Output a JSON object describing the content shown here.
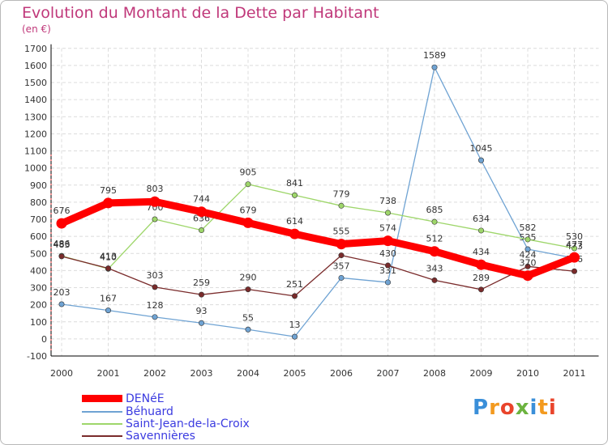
{
  "logo_text": "Proxiti",
  "chart_data": {
    "type": "line",
    "title": "Evolution du Montant de la Dette par Habitant",
    "xlabel": "",
    "ylabel": "(en €)",
    "categories": [
      "2000",
      "2001",
      "2002",
      "2003",
      "2004",
      "2005",
      "2006",
      "2007",
      "2008",
      "2009",
      "2010",
      "2011"
    ],
    "ylim": [
      -100,
      1700
    ],
    "yticks": [
      -100,
      0,
      100,
      200,
      300,
      400,
      500,
      600,
      700,
      800,
      900,
      1000,
      1100,
      1200,
      1300,
      1400,
      1500,
      1600,
      1700
    ],
    "grid": true,
    "legend_position": "bottom-left",
    "series": [
      {
        "name": "DENéE",
        "color": "#ff0000",
        "values": [
          676,
          795,
          803,
          744,
          679,
          614,
          555,
          574,
          512,
          434,
          370,
          477
        ]
      },
      {
        "name": "Béhuard",
        "color": "#6fa3d3",
        "values": [
          203,
          167,
          128,
          93,
          55,
          13,
          357,
          331,
          1589,
          1045,
          525,
          473
        ]
      },
      {
        "name": "Saint-Jean-de-la-Croix",
        "color": "#9ed66a",
        "values": [
          486,
          410,
          700,
          636,
          905,
          841,
          779,
          738,
          685,
          634,
          582,
          530
        ]
      },
      {
        "name": "Savennières",
        "color": "#7a2b2b",
        "values": [
          483,
          413,
          303,
          259,
          290,
          251,
          489,
          430,
          343,
          289,
          424,
          396
        ]
      }
    ]
  }
}
